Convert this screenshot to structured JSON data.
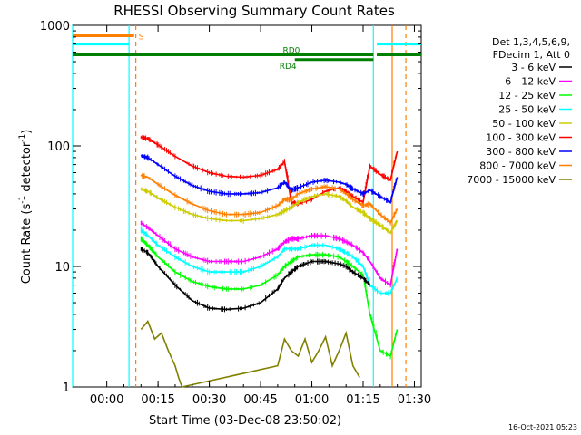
{
  "chart_data": {
    "type": "line",
    "title": "RHESSI Observing Summary Count Rates",
    "xlabel": "Start Time (03-Dec-08 23:50:02)",
    "ylabel_main": "Count Rate (s",
    "ylabel_sup1": "-1",
    "ylabel_mid": " detector",
    "ylabel_sup2": "-1",
    "ylabel_end": ")",
    "y_scale": "log",
    "ylim": [
      1,
      1000
    ],
    "x_unit": "minutes after 00:00",
    "xlim": [
      -10,
      92
    ],
    "x_ticks": [
      {
        "value": 0,
        "label": "00:00"
      },
      {
        "value": 15,
        "label": "00:15"
      },
      {
        "value": 30,
        "label": "00:30"
      },
      {
        "value": 45,
        "label": "00:45"
      },
      {
        "value": 60,
        "label": "01:00"
      },
      {
        "value": 75,
        "label": "01:15"
      },
      {
        "value": 90,
        "label": "01:30"
      }
    ],
    "y_ticks": [
      {
        "value": 1,
        "label": "1"
      },
      {
        "value": 10,
        "label": "10"
      },
      {
        "value": 100,
        "label": "100"
      },
      {
        "value": 1000,
        "label": "1000"
      }
    ],
    "legend": {
      "position": "right",
      "header": [
        "Det 1,3,4,5,6,9,",
        "FDecim 1, Att 0"
      ],
      "entries": [
        {
          "label": "3 - 6 keV",
          "color": "#000000"
        },
        {
          "label": "6 - 12 keV",
          "color": "#ff00ff"
        },
        {
          "label": "12 - 25 keV",
          "color": "#00ff00"
        },
        {
          "label": "25 - 50 keV",
          "color": "#00ffff"
        },
        {
          "label": "50 - 100 keV",
          "color": "#cccc00"
        },
        {
          "label": "100 - 300 keV",
          "color": "#ff0000"
        },
        {
          "label": "300 - 800 keV",
          "color": "#0000ff"
        },
        {
          "label": "800 - 7000 keV",
          "color": "#ff7f00"
        },
        {
          "label": "7000 - 15000 keV",
          "color": "#808000"
        }
      ]
    },
    "series": [
      {
        "color": "#ff0000",
        "x": [
          10,
          12,
          15,
          20,
          25,
          30,
          35,
          40,
          45,
          50,
          52,
          54,
          56,
          60,
          64,
          68,
          70,
          72,
          75,
          77,
          80,
          83,
          85
        ],
        "y": [
          118,
          115,
          102,
          82,
          68,
          60,
          56,
          55,
          57,
          64,
          74,
          34,
          33,
          36,
          42,
          45,
          42,
          38,
          34,
          68,
          58,
          52,
          90
        ]
      },
      {
        "color": "#ff7f00",
        "x": [
          10,
          12,
          15,
          20,
          25,
          30,
          35,
          40,
          45,
          50,
          52,
          54,
          56,
          60,
          64,
          68,
          70,
          72,
          75,
          77,
          80,
          83,
          85
        ],
        "y": [
          57,
          55,
          48,
          39,
          33,
          29,
          27,
          27,
          28,
          32,
          36,
          36,
          40,
          44,
          46,
          44,
          40,
          36,
          32,
          33,
          27,
          23,
          30
        ]
      },
      {
        "color": "#0000ff",
        "x": [
          10,
          12,
          15,
          20,
          25,
          30,
          35,
          40,
          45,
          50,
          52,
          54,
          56,
          60,
          64,
          68,
          70,
          72,
          75,
          77,
          80,
          83,
          85
        ],
        "y": [
          83,
          80,
          70,
          56,
          47,
          42,
          40,
          40,
          41,
          45,
          50,
          43,
          45,
          50,
          52,
          50,
          48,
          44,
          40,
          43,
          38,
          34,
          55
        ]
      },
      {
        "color": "#cccc00",
        "x": [
          10,
          12,
          15,
          20,
          25,
          30,
          35,
          40,
          45,
          50,
          52,
          54,
          56,
          60,
          64,
          68,
          70,
          72,
          75,
          77,
          80,
          83,
          85
        ],
        "y": [
          44,
          42,
          37,
          31,
          27,
          25,
          24,
          24,
          25,
          27,
          29,
          31,
          34,
          38,
          40,
          38,
          35,
          31,
          28,
          25,
          22,
          19,
          24
        ]
      },
      {
        "color": "#ff00ff",
        "x": [
          10,
          12,
          15,
          20,
          25,
          30,
          35,
          40,
          45,
          50,
          52,
          54,
          56,
          60,
          64,
          68,
          70,
          72,
          75,
          77,
          80,
          83,
          85
        ],
        "y": [
          23,
          21,
          18,
          14,
          12,
          11,
          11,
          11,
          12,
          14,
          16,
          17,
          17,
          18,
          18,
          17,
          16,
          15,
          13,
          11,
          8,
          7,
          14
        ]
      },
      {
        "color": "#00ffff",
        "x": [
          10,
          12,
          15,
          20,
          25,
          30,
          35,
          40,
          45,
          50,
          52,
          54,
          56,
          60,
          64,
          68,
          70,
          72,
          75,
          77,
          80,
          83,
          85
        ],
        "y": [
          20,
          18,
          15,
          12,
          10,
          9,
          9,
          9,
          10,
          12,
          14,
          14,
          14,
          15,
          15,
          14,
          13,
          12,
          10,
          7,
          6,
          6,
          8
        ]
      },
      {
        "color": "#00ff00",
        "x": [
          10,
          12,
          15,
          20,
          25,
          30,
          35,
          40,
          45,
          50,
          52,
          54,
          56,
          60,
          64,
          68,
          70,
          72,
          75,
          77,
          80,
          83,
          85
        ],
        "y": [
          17,
          15,
          12,
          9,
          7.5,
          6.8,
          6.5,
          6.5,
          7,
          8.5,
          10,
          11,
          12,
          12.5,
          12.5,
          12,
          11,
          10,
          8.5,
          4,
          2,
          1.8,
          3
        ]
      },
      {
        "color": "#000000",
        "x": [
          10,
          12,
          15,
          20,
          25,
          30,
          35,
          40,
          45,
          50,
          52,
          54,
          56,
          60,
          64,
          68,
          70,
          72,
          75,
          77
        ],
        "y": [
          14,
          13,
          10,
          7,
          5.2,
          4.5,
          4.4,
          4.5,
          5,
          6.5,
          8,
          9,
          10,
          11,
          11,
          10.5,
          10,
          9,
          8,
          7
        ]
      },
      {
        "color": "#808000",
        "x": [
          10,
          12,
          14,
          16,
          18,
          20,
          21,
          22,
          50,
          52,
          54,
          56,
          58,
          60,
          62,
          64,
          66,
          68,
          70,
          72,
          74
        ],
        "y": [
          3,
          3.5,
          2.5,
          2.8,
          2,
          1.5,
          1.2,
          1,
          1.5,
          2.5,
          2,
          1.8,
          2.5,
          1.6,
          2,
          2.6,
          1.5,
          2,
          2.8,
          1.5,
          1.2
        ]
      }
    ],
    "attenuator_markers": [
      {
        "x": -10,
        "color": "#00ffff"
      },
      {
        "x": 6.5,
        "color": "#00ffff"
      },
      {
        "x": 8.5,
        "color": "#ff7f00",
        "dashed": true
      },
      {
        "x": 78,
        "color": "#00ffff"
      },
      {
        "x": 83.5,
        "color": "#ff7f00"
      },
      {
        "x": 87.5,
        "color": "#ff7f00",
        "dashed": true
      }
    ],
    "state_bars": [
      {
        "label": "S",
        "color": "#ff7f00",
        "segments": [
          [
            -10,
            8
          ]
        ],
        "y": 820
      },
      {
        "label": "",
        "color": "#00ffff",
        "segments": [
          [
            -10,
            6.5
          ],
          [
            79,
            92
          ]
        ],
        "y": 700
      },
      {
        "label": "RD0",
        "color": "#008000",
        "segments": [
          [
            -10,
            78
          ],
          [
            79,
            92
          ]
        ],
        "y": 570
      },
      {
        "label": "RD4",
        "color": "#008000",
        "segments": [
          [
            55,
            78
          ]
        ],
        "y": 520
      }
    ],
    "timestamp": "16-Oct-2021 05:23"
  }
}
